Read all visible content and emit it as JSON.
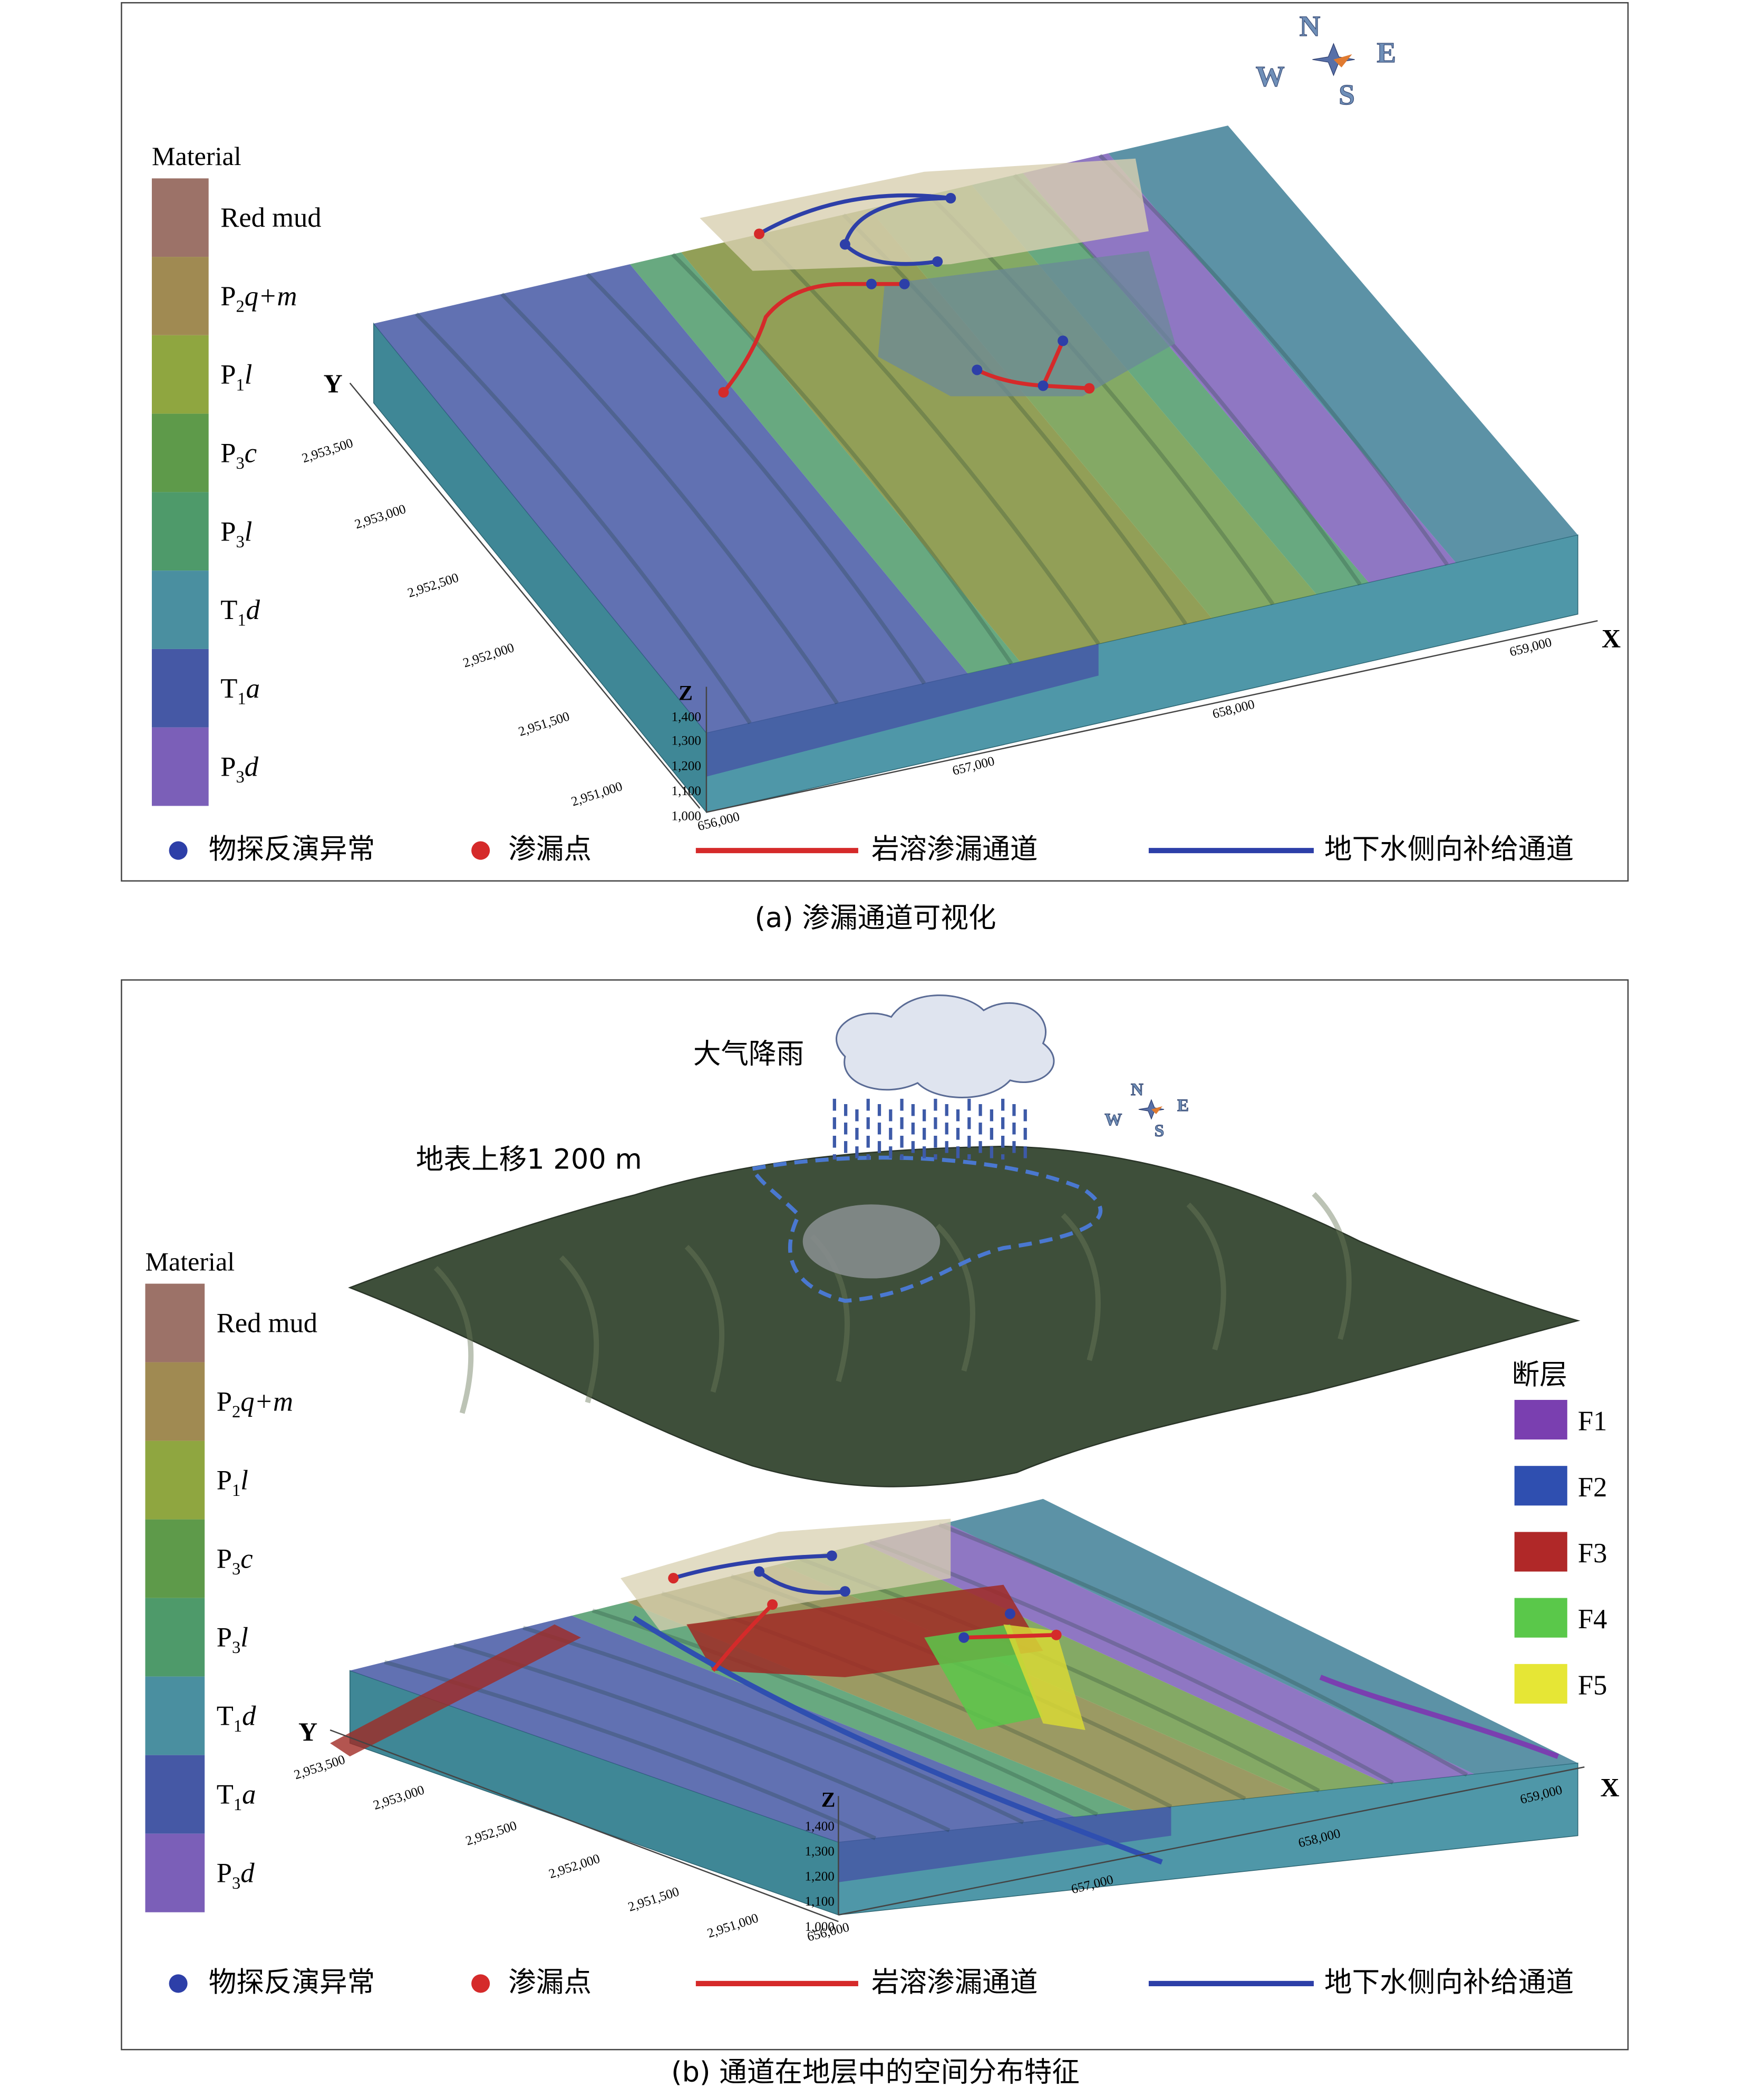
{
  "panel_a": {
    "legend": {
      "title": "Material",
      "items": [
        {
          "base": "Red mud",
          "color": "#9c7268"
        },
        {
          "base": "P",
          "sub": "2",
          "rest": "q+m",
          "color": "#a08a52"
        },
        {
          "base": "P",
          "sub": "1",
          "rest": "l",
          "color": "#8fa640"
        },
        {
          "base": "P",
          "sub": "3",
          "rest": "c",
          "color": "#5e9a4a"
        },
        {
          "base": "P",
          "sub": "3",
          "rest": "l",
          "color": "#4e9a6a"
        },
        {
          "base": "T",
          "sub": "1",
          "rest": "d",
          "color": "#4a8fa0"
        },
        {
          "base": "T",
          "sub": "1",
          "rest": "a",
          "color": "#4558a5"
        },
        {
          "base": "P",
          "sub": "3",
          "rest": "d",
          "color": "#7b5fb8"
        }
      ]
    },
    "compass": {
      "n": "N",
      "e": "E",
      "s": "S",
      "w": "W"
    },
    "axes": {
      "x_label": "X",
      "y_label": "Y",
      "z_label": "Z",
      "x_ticks": [
        "656,000",
        "657,000",
        "658,000",
        "659,000"
      ],
      "y_ticks": [
        "2,951,000",
        "2,951,500",
        "2,952,000",
        "2,952,500",
        "2,953,000",
        "2,953,500"
      ],
      "z_ticks": [
        "1,000",
        "1,100",
        "1,200",
        "1,300",
        "1,400"
      ]
    },
    "key": [
      "物探反演异常",
      "渗漏点",
      "岩溶渗漏通道",
      "地下水侧向补给通道"
    ],
    "caption": "(a) 渗漏通道可视化"
  },
  "panel_b": {
    "rain_label": "大气降雨",
    "surface_label": "地表上移1 200 m",
    "legend": {
      "title": "Material",
      "items": [
        {
          "base": "Red mud",
          "color": "#9c7268"
        },
        {
          "base": "P",
          "sub": "2",
          "rest": "q+m",
          "color": "#a08a52"
        },
        {
          "base": "P",
          "sub": "1",
          "rest": "l",
          "color": "#8fa640"
        },
        {
          "base": "P",
          "sub": "3",
          "rest": "c",
          "color": "#5e9a4a"
        },
        {
          "base": "P",
          "sub": "3",
          "rest": "l",
          "color": "#4e9a6a"
        },
        {
          "base": "T",
          "sub": "1",
          "rest": "d",
          "color": "#4a8fa0"
        },
        {
          "base": "T",
          "sub": "1",
          "rest": "a",
          "color": "#4558a5"
        },
        {
          "base": "P",
          "sub": "3",
          "rest": "d",
          "color": "#7b5fb8"
        }
      ]
    },
    "faults": {
      "title": "断层",
      "items": [
        {
          "name": "F1",
          "color": "#7a3fb0"
        },
        {
          "name": "F2",
          "color": "#2f4fb0"
        },
        {
          "name": "F3",
          "color": "#b02828"
        },
        {
          "name": "F4",
          "color": "#5ac84a"
        },
        {
          "name": "F5",
          "color": "#e6e635"
        }
      ]
    },
    "axes": {
      "x_label": "X",
      "y_label": "Y",
      "z_label": "Z",
      "x_ticks": [
        "656,000",
        "657,000",
        "658,000",
        "659,000"
      ],
      "y_ticks": [
        "2,951,000",
        "2,951,500",
        "2,952,000",
        "2,952,500",
        "2,953,000",
        "2,953,500"
      ],
      "z_ticks": [
        "1,000",
        "1,100",
        "1,200",
        "1,300",
        "1,400"
      ]
    },
    "key": [
      "物探反演异常",
      "渗漏点",
      "岩溶渗漏通道",
      "地下水侧向补给通道"
    ],
    "caption": "(b) 通道在地层中的空间分布特征"
  }
}
